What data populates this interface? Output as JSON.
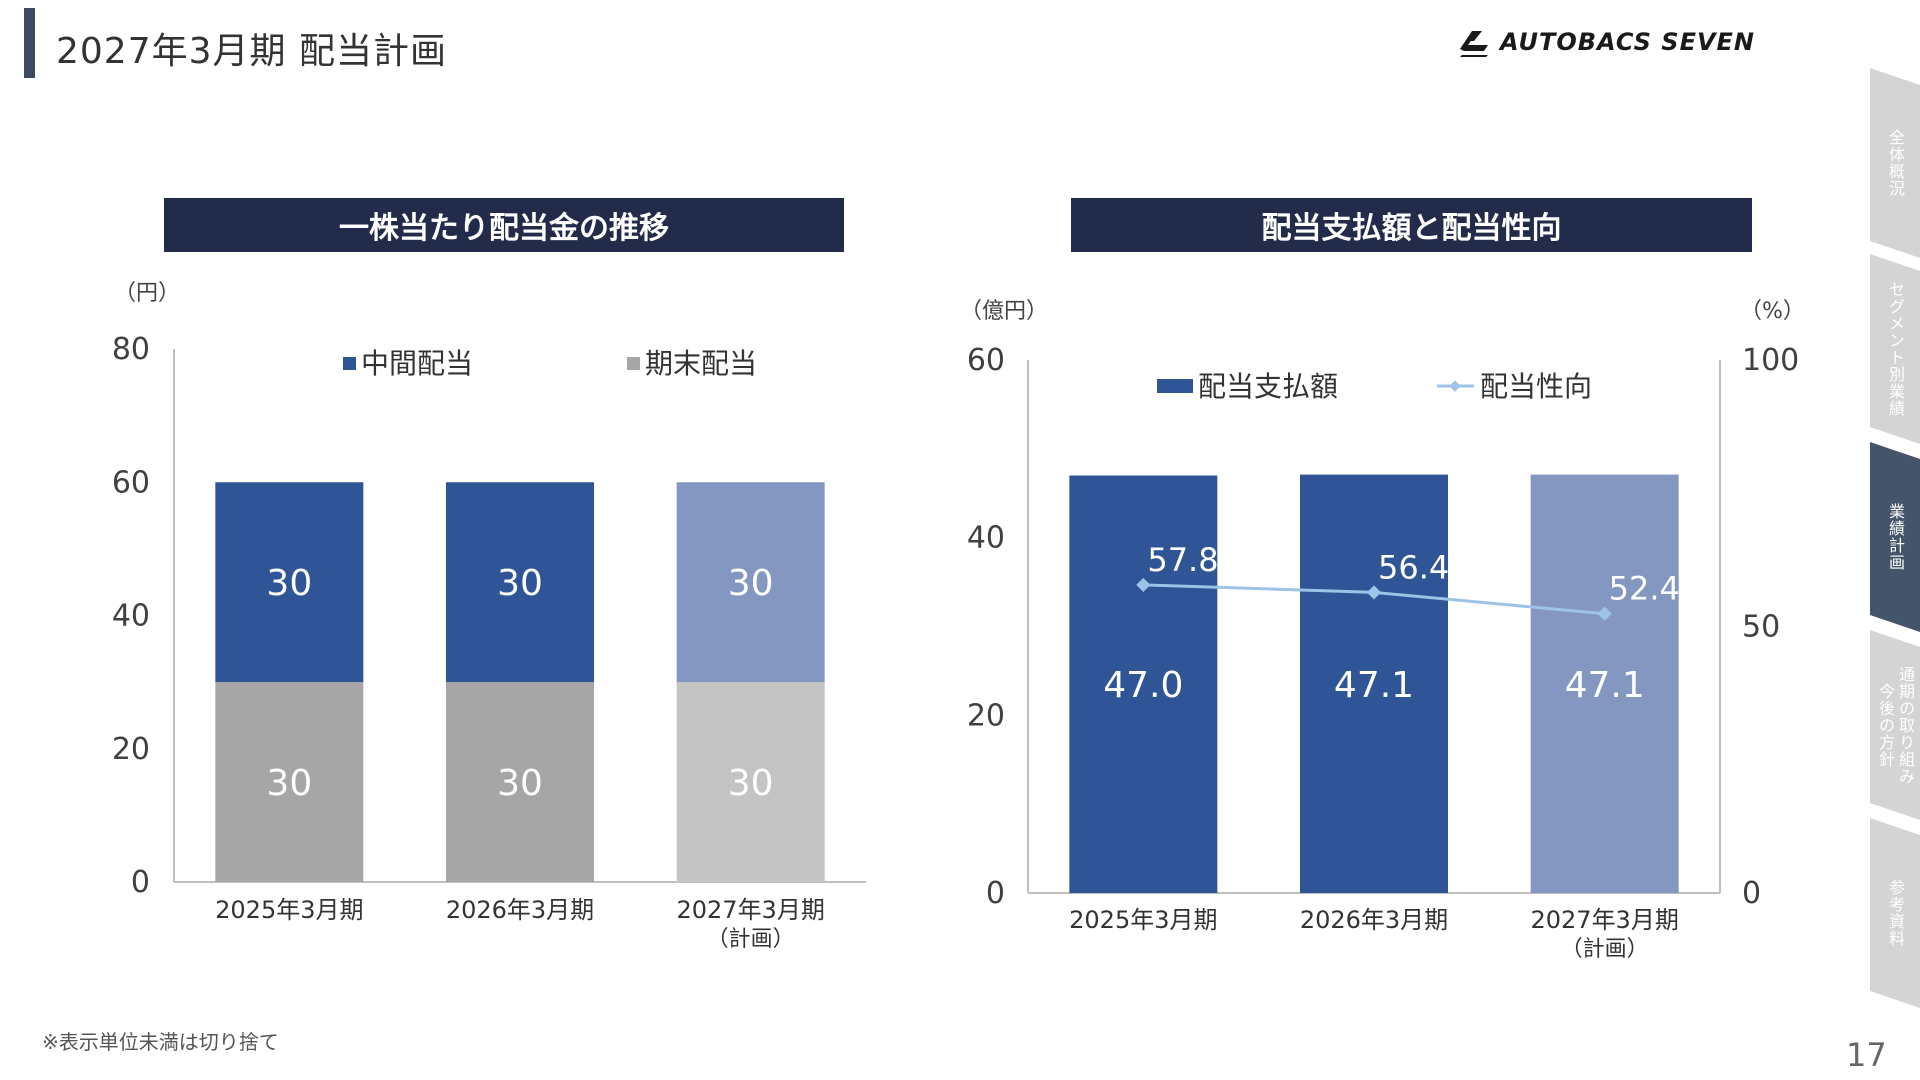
{
  "page": {
    "title": "2027年3月期  配当計画",
    "logo_text": "AUTOBACS SEVEN",
    "footnote": "※表示単位未満は切り捨て",
    "page_number": "17"
  },
  "side_tabs": [
    {
      "label": "全体概況",
      "active": false
    },
    {
      "label": "セグメント別業績",
      "active": false
    },
    {
      "label": "業績計画",
      "active": true
    },
    {
      "label": "通期の取り組み\n今後の方針",
      "active": false
    },
    {
      "label": "参考資料",
      "active": false
    }
  ],
  "colors": {
    "header_bg": "#222c4a",
    "interim_actual": "#2f5597",
    "interim_plan": "#8497c0",
    "yearend_actual": "#a6a6a6",
    "yearend_plan": "#c4c4c4",
    "payout_line": "#9dc3e6",
    "tab_inactive": "#d4d4d4",
    "tab_active": "#44546a"
  },
  "chart_data": [
    {
      "type": "bar",
      "stacked": true,
      "title": "一株当たり配当金の推移",
      "ylabel": "（円）",
      "ylim": [
        0,
        80
      ],
      "yticks": [
        "0",
        "20",
        "40",
        "60",
        "80"
      ],
      "categories": [
        "2025年3月期",
        "2026年3月期",
        "2027年3月期"
      ],
      "category_sublabels": [
        "",
        "",
        "（計画）"
      ],
      "series": [
        {
          "name": "期末配当",
          "values": [
            30,
            30,
            30
          ]
        },
        {
          "name": "中間配当",
          "values": [
            30,
            30,
            30
          ]
        }
      ],
      "legend": [
        "中間配当",
        "期末配当"
      ],
      "legend_position": "top",
      "grid": false
    },
    {
      "type": "bar",
      "title": "配当支払額と配当性向",
      "ylabel": "（億円）",
      "ylabel_right": "（%）",
      "ylim": [
        0,
        60
      ],
      "ylim_right": [
        0,
        100
      ],
      "yticks": [
        "0",
        "20",
        "40",
        "60"
      ],
      "yticks_right": [
        "0",
        "50",
        "100"
      ],
      "categories": [
        "2025年3月期",
        "2026年3月期",
        "2027年3月期"
      ],
      "category_sublabels": [
        "",
        "",
        "（計画）"
      ],
      "series": [
        {
          "name": "配当支払額",
          "type": "bar",
          "values": [
            47.0,
            47.1,
            47.1
          ],
          "labels": [
            "47.0",
            "47.1",
            "47.1"
          ]
        },
        {
          "name": "配当性向",
          "type": "line",
          "axis": "right",
          "values": [
            57.8,
            56.4,
            52.4
          ],
          "labels": [
            "57.8",
            "56.4",
            "52.4"
          ]
        }
      ],
      "legend_position": "top",
      "grid": false
    }
  ]
}
